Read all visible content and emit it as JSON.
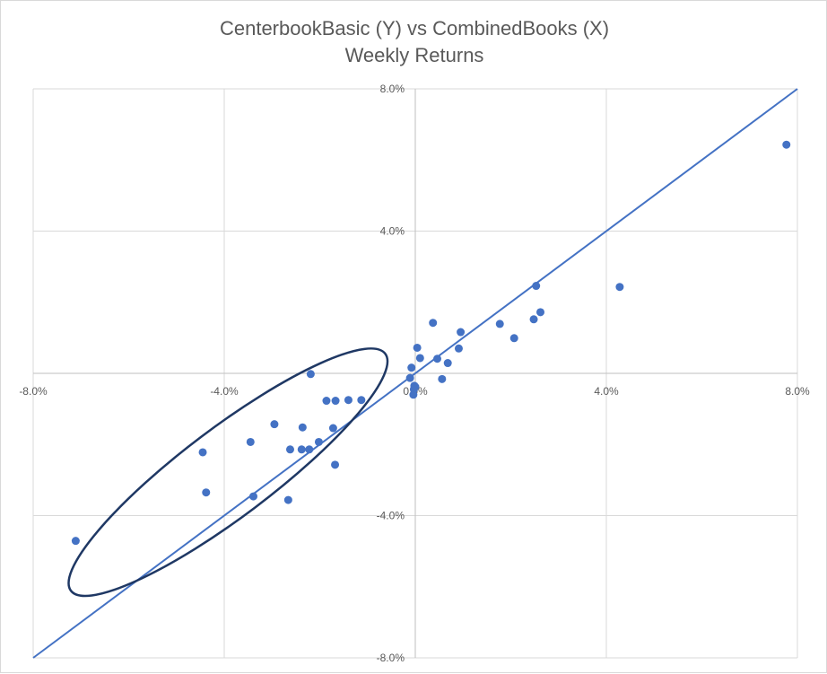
{
  "chart_data": {
    "type": "scatter",
    "title": "CenterbookBasic (Y) vs CombinedBooks (X)",
    "subtitle": "Weekly Returns",
    "xlabel": "",
    "ylabel": "",
    "xlim": [
      -0.08,
      0.08
    ],
    "ylim": [
      -0.08,
      0.08
    ],
    "x_ticks": [
      "-8.0%",
      "-4.0%",
      "0.0%",
      "4.0%",
      "8.0%"
    ],
    "y_ticks": [
      "8.0%",
      "4.0%",
      "0.0%",
      "-4.0%",
      "-8.0%"
    ],
    "x_tick_values": [
      -0.08,
      -0.04,
      0.0,
      0.04,
      0.08
    ],
    "y_tick_values": [
      0.08,
      0.04,
      0.0,
      -0.04,
      -0.08
    ],
    "grid": true,
    "point_color": "#4472c4",
    "line_color": "#4472c4",
    "ellipse_color": "#1f3864",
    "reference_line": {
      "x": [
        -0.08,
        0.08
      ],
      "y": [
        -0.08,
        0.08
      ]
    },
    "highlight_ellipse": {
      "cx": -0.0392,
      "cy": -0.0278,
      "rx": 0.0412,
      "ry": 0.0125,
      "angle_deg": -37
    },
    "points": [
      {
        "x": 0.0777,
        "y": 0.0643
      },
      {
        "x": 0.0428,
        "y": 0.0243
      },
      {
        "x": 0.0253,
        "y": 0.0246
      },
      {
        "x": 0.0262,
        "y": 0.0172
      },
      {
        "x": 0.0248,
        "y": 0.0152
      },
      {
        "x": 0.0207,
        "y": 0.0099
      },
      {
        "x": 0.0177,
        "y": 0.0139
      },
      {
        "x": 0.0095,
        "y": 0.0116
      },
      {
        "x": 0.0091,
        "y": 0.007
      },
      {
        "x": 0.0068,
        "y": 0.0029
      },
      {
        "x": 0.0056,
        "y": -0.0016
      },
      {
        "x": 0.0046,
        "y": 0.0041
      },
      {
        "x": 0.0037,
        "y": 0.0142
      },
      {
        "x": 0.001,
        "y": 0.0043
      },
      {
        "x": 0.0004,
        "y": 0.0072
      },
      {
        "x": 0.0,
        "y": -0.0038
      },
      {
        "x": -0.0002,
        "y": -0.0035
      },
      {
        "x": -0.0004,
        "y": -0.006
      },
      {
        "x": -0.0003,
        "y": -0.0045
      },
      {
        "x": -0.0008,
        "y": 0.0016
      },
      {
        "x": -0.0011,
        "y": -0.0013
      },
      {
        "x": -0.0113,
        "y": -0.0075
      },
      {
        "x": -0.014,
        "y": -0.0075
      },
      {
        "x": -0.0167,
        "y": -0.0077
      },
      {
        "x": -0.0186,
        "y": -0.0077
      },
      {
        "x": -0.0219,
        "y": -0.0002
      },
      {
        "x": -0.0172,
        "y": -0.0154
      },
      {
        "x": -0.0202,
        "y": -0.0193
      },
      {
        "x": -0.0236,
        "y": -0.0152
      },
      {
        "x": -0.0222,
        "y": -0.0214
      },
      {
        "x": -0.0238,
        "y": -0.0214
      },
      {
        "x": -0.0262,
        "y": -0.0214
      },
      {
        "x": -0.0295,
        "y": -0.0143
      },
      {
        "x": -0.0345,
        "y": -0.0193
      },
      {
        "x": -0.0168,
        "y": -0.0257
      },
      {
        "x": -0.0266,
        "y": -0.0356
      },
      {
        "x": -0.0339,
        "y": -0.0346
      },
      {
        "x": -0.0445,
        "y": -0.0222
      },
      {
        "x": -0.0438,
        "y": -0.0335
      },
      {
        "x": -0.0711,
        "y": -0.0471
      }
    ]
  }
}
